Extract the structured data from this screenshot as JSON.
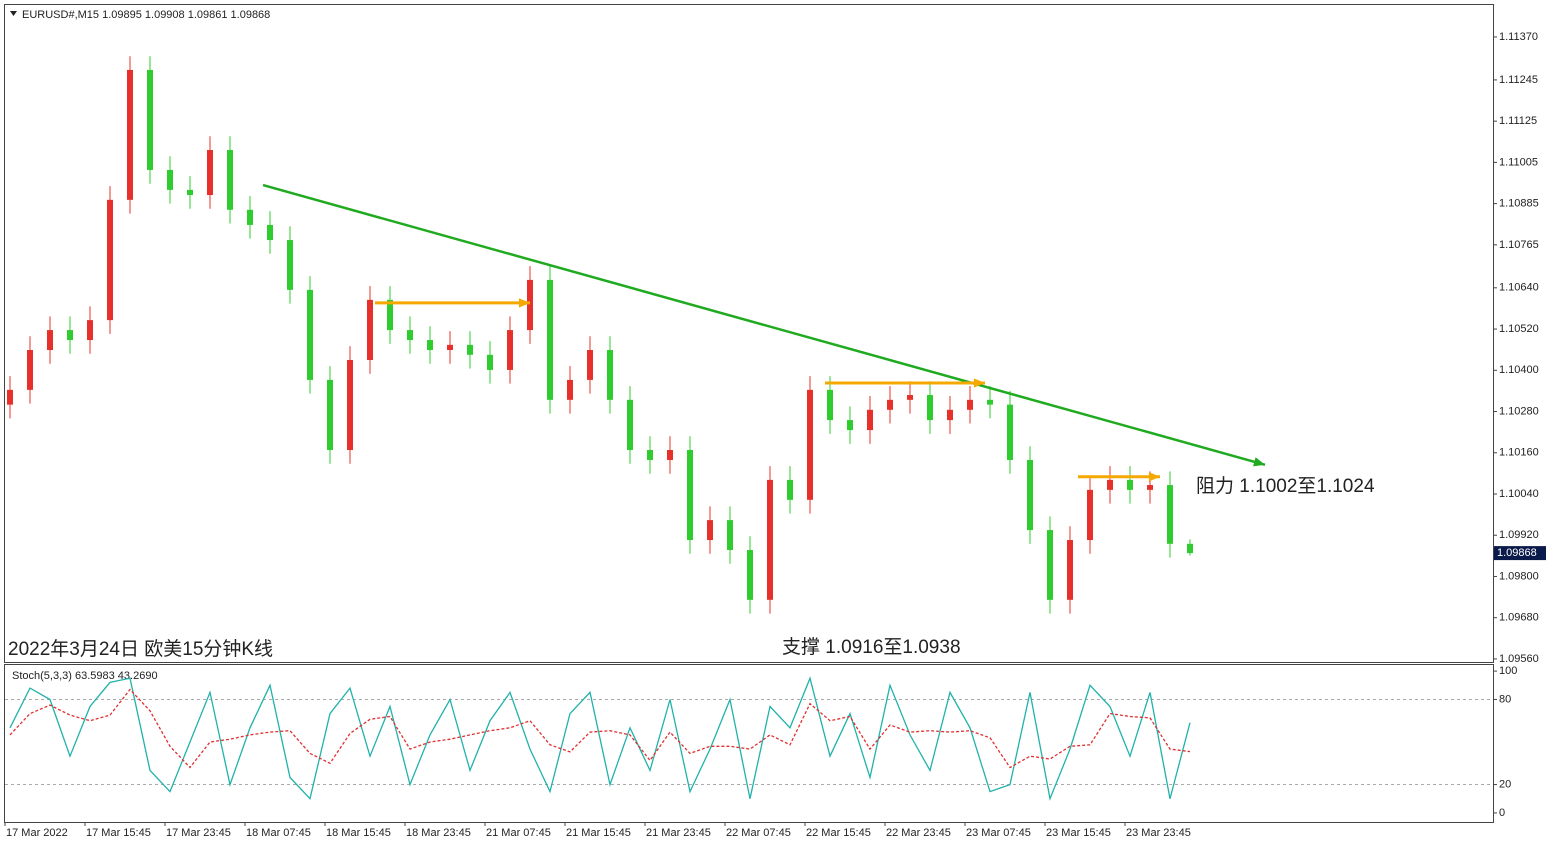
{
  "chart_data": [
    {
      "type": "candlestick",
      "title": "EURUSD#,M15  1.09895 1.09908 1.09861 1.09868",
      "annotations": [
        "2022年3月24日 欧美15分钟K线",
        "支撑 1.0916至1.0938",
        "阻力 1.1002至1.1024"
      ],
      "up_color": "#e8302a",
      "down_color": "#2ecc2e",
      "open": [
        1.103,
        1.10343,
        1.10459,
        1.10517,
        1.10488,
        1.10546,
        1.10896,
        1.11274,
        1.10983,
        1.10925,
        1.1091,
        1.11041,
        1.10867,
        1.10823,
        1.10779,
        1.10634,
        1.10372,
        1.10168,
        1.1043,
        1.10605,
        1.10517,
        1.10488,
        1.10459,
        1.10474,
        1.10445,
        1.10401,
        1.10517,
        1.10663,
        1.10314,
        1.10372,
        1.10459,
        1.10314,
        1.10168,
        1.10139,
        1.10168,
        1.09906,
        1.09964,
        1.09877,
        1.09732,
        1.10081,
        1.10023,
        1.10343,
        1.10255,
        1.10226,
        1.10285,
        1.10314,
        1.10328,
        1.10255,
        1.10285,
        1.10314,
        1.103,
        1.10139,
        1.09935,
        1.09732,
        1.09906,
        1.10052,
        1.10081,
        1.10052,
        1.10066,
        1.09895
      ],
      "high": [
        1.10383,
        1.10499,
        1.10557,
        1.10557,
        1.10586,
        1.10936,
        1.11314,
        1.11314,
        1.11023,
        1.10965,
        1.11081,
        1.11081,
        1.10907,
        1.10863,
        1.10819,
        1.10674,
        1.10412,
        1.1047,
        1.10645,
        1.10645,
        1.10557,
        1.10528,
        1.10514,
        1.10514,
        1.10485,
        1.10557,
        1.10703,
        1.10703,
        1.10412,
        1.10499,
        1.10499,
        1.10354,
        1.10208,
        1.10208,
        1.10208,
        1.10004,
        1.10004,
        1.09917,
        1.10121,
        1.10121,
        1.10383,
        1.10383,
        1.10295,
        1.10325,
        1.10354,
        1.10368,
        1.10368,
        1.10325,
        1.10354,
        1.10354,
        1.1034,
        1.10179,
        1.09975,
        1.09946,
        1.10092,
        1.10121,
        1.10121,
        1.10106,
        1.10106,
        1.09908
      ],
      "low": [
        1.1026,
        1.10303,
        1.10419,
        1.10448,
        1.10448,
        1.10506,
        1.10856,
        1.10943,
        1.10885,
        1.1087,
        1.1087,
        1.10827,
        1.10783,
        1.10739,
        1.10594,
        1.10332,
        1.10128,
        1.10128,
        1.1039,
        1.10477,
        1.10448,
        1.10419,
        1.10419,
        1.10405,
        1.10361,
        1.10361,
        1.10477,
        1.10274,
        1.10274,
        1.10332,
        1.10274,
        1.10128,
        1.10099,
        1.10099,
        1.09866,
        1.09866,
        1.09837,
        1.09692,
        1.09692,
        1.09983,
        1.09983,
        1.10215,
        1.10186,
        1.10186,
        1.10245,
        1.10274,
        1.10215,
        1.10215,
        1.10245,
        1.1026,
        1.10099,
        1.09895,
        1.09692,
        1.09692,
        1.09866,
        1.10012,
        1.10012,
        1.10012,
        1.09855,
        1.09861
      ],
      "close": [
        1.10343,
        1.10459,
        1.10517,
        1.10488,
        1.10546,
        1.10896,
        1.11274,
        1.10983,
        1.10925,
        1.1091,
        1.11041,
        1.10867,
        1.10823,
        1.10779,
        1.10634,
        1.10372,
        1.10168,
        1.1043,
        1.10605,
        1.10517,
        1.10488,
        1.10459,
        1.10474,
        1.10445,
        1.10401,
        1.10517,
        1.10663,
        1.10314,
        1.10372,
        1.10459,
        1.10314,
        1.10168,
        1.10139,
        1.10168,
        1.09906,
        1.09964,
        1.09877,
        1.09732,
        1.10081,
        1.10023,
        1.10343,
        1.10255,
        1.10226,
        1.10285,
        1.10314,
        1.10328,
        1.10255,
        1.10285,
        1.10314,
        1.103,
        1.10139,
        1.09935,
        1.09732,
        1.09906,
        1.10052,
        1.10081,
        1.10052,
        1.10066,
        1.09895,
        1.09868
      ],
      "lines": [
        {
          "color": "#1faa1f",
          "x": [
            12.65,
            62.75
          ],
          "y": [
            1.10939,
            1.10125
          ]
        },
        {
          "color": "#f5a800",
          "x": [
            18.25,
            26.0
          ],
          "y": [
            1.10596,
            1.10596
          ]
        },
        {
          "color": "#f5a800",
          "x": [
            40.75,
            48.75
          ],
          "y": [
            1.10363,
            1.10363
          ]
        },
        {
          "color": "#f5a800",
          "x": [
            53.4,
            57.5
          ],
          "y": [
            1.1009,
            1.1009
          ]
        }
      ],
      "current_price": 1.09868,
      "xlim": [
        -0.25,
        74.15
      ],
      "xticks": [
        {
          "value": -0.25,
          "label": "17 Mar 2022"
        },
        {
          "value": 3.75,
          "label": "17 Mar 15:45"
        },
        {
          "value": 7.75,
          "label": "17 Mar 23:45"
        },
        {
          "value": 11.75,
          "label": "18 Mar 07:45"
        },
        {
          "value": 15.75,
          "label": "18 Mar 15:45"
        },
        {
          "value": 19.75,
          "label": "18 Mar 23:45"
        },
        {
          "value": 23.75,
          "label": "21 Mar 07:45"
        },
        {
          "value": 27.75,
          "label": "21 Mar 15:45"
        },
        {
          "value": 31.75,
          "label": "21 Mar 23:45"
        },
        {
          "value": 35.75,
          "label": "22 Mar 07:45"
        },
        {
          "value": 39.75,
          "label": "22 Mar 15:45"
        },
        {
          "value": 43.75,
          "label": "22 Mar 23:45"
        },
        {
          "value": 47.75,
          "label": "23 Mar 07:45"
        },
        {
          "value": 51.75,
          "label": "23 Mar 15:45"
        },
        {
          "value": 55.75,
          "label": "23 Mar 23:45"
        }
      ],
      "ylim": [
        1.09554,
        1.11463
      ],
      "yticks": [
        {
          "value": 1.1137,
          "label": "1.11370"
        },
        {
          "value": 1.11245,
          "label": "1.11245"
        },
        {
          "value": 1.11125,
          "label": "1.11125"
        },
        {
          "value": 1.11005,
          "label": "1.11005"
        },
        {
          "value": 1.10885,
          "label": "1.10885"
        },
        {
          "value": 1.10765,
          "label": "1.10765"
        },
        {
          "value": 1.1064,
          "label": "1.10640"
        },
        {
          "value": 1.1052,
          "label": "1.10520"
        },
        {
          "value": 1.104,
          "label": "1.10400"
        },
        {
          "value": 1.1028,
          "label": "1.10280"
        },
        {
          "value": 1.1016,
          "label": "1.10160"
        },
        {
          "value": 1.1004,
          "label": "1.10040"
        },
        {
          "value": 1.0992,
          "label": "1.09920"
        },
        {
          "value": 1.098,
          "label": "1.09800"
        },
        {
          "value": 1.0968,
          "label": "1.09680"
        },
        {
          "value": 1.0956,
          "label": "1.09560"
        }
      ]
    },
    {
      "type": "line",
      "title": "Stoch(5,3,3) 63.5983 43.2690",
      "series": [
        {
          "color": "#20b2aa",
          "dashed": false,
          "values": [
            60,
            88,
            80,
            40,
            75,
            92,
            95,
            30,
            15,
            50,
            85,
            20,
            60,
            90,
            25,
            10,
            70,
            88,
            40,
            75,
            20,
            55,
            80,
            30,
            65,
            85,
            45,
            15,
            70,
            85,
            20,
            60,
            30,
            80,
            15,
            45,
            80,
            10,
            75,
            60,
            95,
            40,
            70,
            25,
            90,
            55,
            30,
            85,
            60,
            15,
            20,
            85,
            10,
            45,
            90,
            75,
            40,
            85,
            10,
            63.5983
          ]
        },
        {
          "color": "#e03030",
          "dashed": true,
          "values": [
            55,
            70,
            76,
            69,
            65,
            69,
            87,
            72,
            47,
            32,
            50,
            52,
            55,
            57,
            58,
            42,
            35,
            56,
            66,
            68,
            45,
            50,
            52,
            55,
            58,
            60,
            65,
            48,
            43,
            57,
            58,
            55,
            37,
            57,
            42,
            47,
            47,
            45,
            55,
            48,
            77,
            65,
            68,
            45,
            62,
            57,
            58,
            57,
            58,
            53,
            32,
            40,
            38,
            47,
            48,
            70,
            68,
            67,
            45,
            43.269
          ]
        }
      ],
      "levels": [
        80,
        20
      ],
      "xlim": [
        -0.25,
        74.15
      ],
      "ylim": [
        -6.4,
        105
      ],
      "yticks": [
        100,
        80,
        20,
        0
      ]
    }
  ]
}
